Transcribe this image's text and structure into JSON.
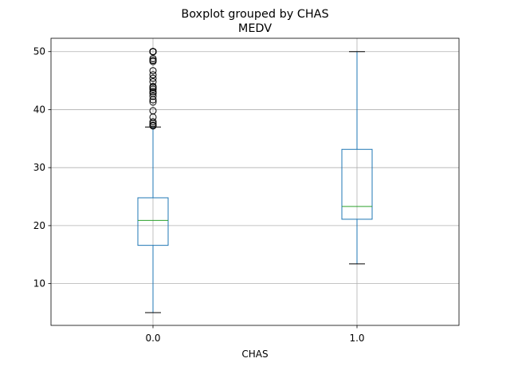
{
  "chart_data": {
    "type": "boxplot",
    "title": "Boxplot grouped by CHAS",
    "subtitle": "MEDV",
    "xlabel": "CHAS",
    "ylabel": "",
    "ylim": [
      2.8,
      52.3
    ],
    "yticks": [
      10,
      20,
      30,
      40,
      50
    ],
    "categories": [
      "0.0",
      "1.0"
    ],
    "grid": true,
    "boxes": [
      {
        "category": "0.0",
        "whisker_low": 5.0,
        "q1": 16.6,
        "median": 20.9,
        "q3": 24.8,
        "whisker_high": 37.0,
        "outliers": [
          37.2,
          37.3,
          37.6,
          37.9,
          38.7,
          39.8,
          41.3,
          41.7,
          42.3,
          42.8,
          43.1,
          43.5,
          43.8,
          44.0,
          44.8,
          45.4,
          46.0,
          46.7,
          48.3,
          48.5,
          48.8,
          50.0,
          50.0,
          50.0,
          50.0,
          50.0,
          50.0,
          50.0,
          50.0,
          50.0,
          50.0,
          50.0,
          50.0
        ]
      },
      {
        "category": "1.0",
        "whisker_low": 13.4,
        "q1": 21.1,
        "median": 23.3,
        "q3": 33.15,
        "whisker_high": 50.0,
        "outliers": []
      }
    ],
    "colors": {
      "box": "#1f77b4",
      "whisker": "#1f77b4",
      "cap": "#000000",
      "median": "#2ca02c",
      "outlier": "#000000",
      "grid": "#b0b0b0"
    }
  }
}
